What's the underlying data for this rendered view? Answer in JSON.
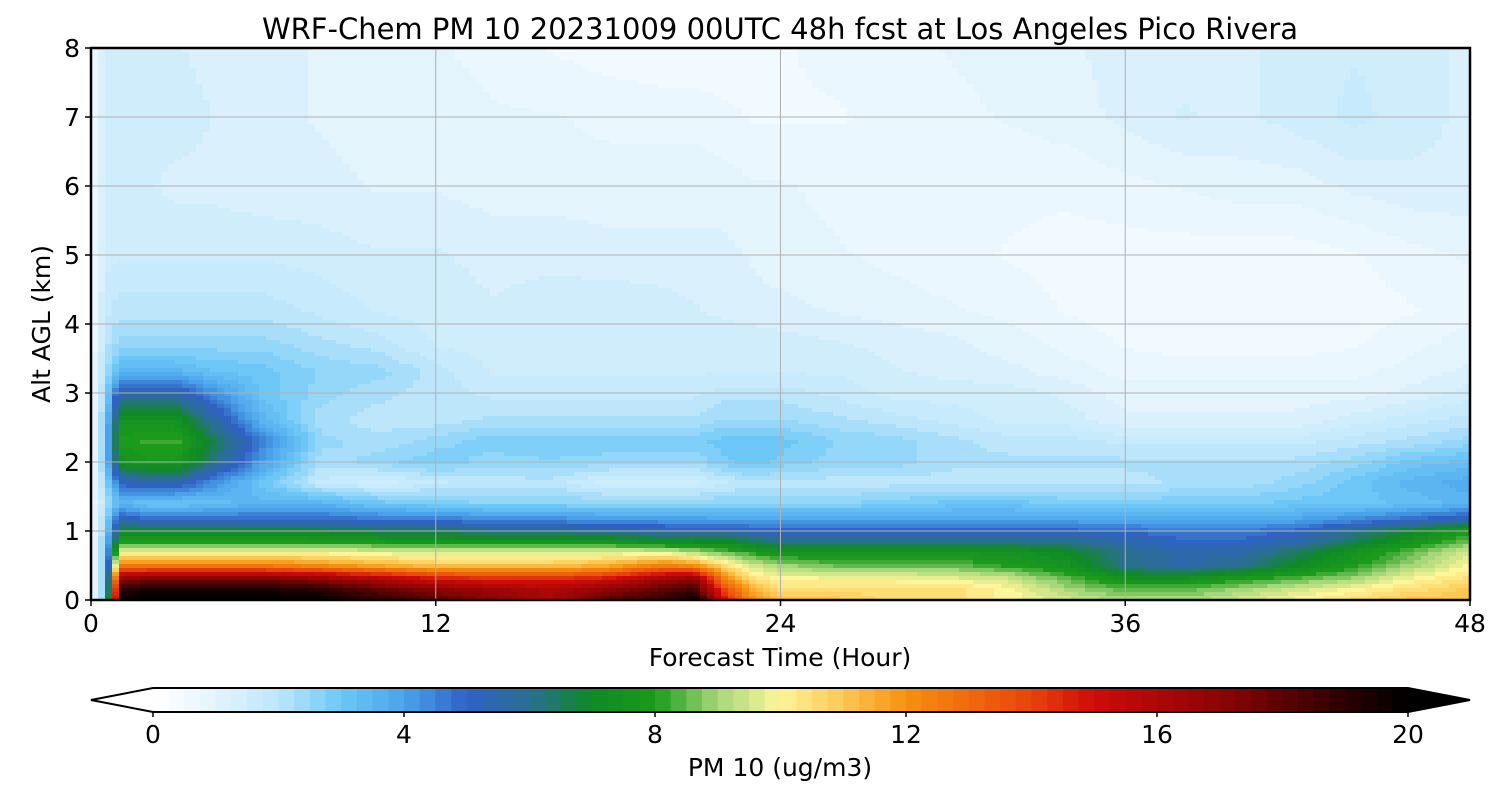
{
  "chart_data": {
    "type": "heatmap",
    "title": "WRF-Chem PM 10  20231009 00UTC 48h fcst at Los Angeles Pico Rivera",
    "xlabel": "Forecast Time (Hour)",
    "ylabel": "Alt AGL (km)",
    "xlim": [
      0,
      48
    ],
    "ylim": [
      0,
      8
    ],
    "xticks": [
      0,
      12,
      24,
      36,
      48
    ],
    "yticks": [
      0,
      1,
      2,
      3,
      4,
      5,
      6,
      7,
      8
    ],
    "grid": true,
    "colorbar": {
      "label": "PM 10  (ug/m3)",
      "range": [
        0,
        20
      ],
      "ticks": [
        0,
        4,
        8,
        12,
        16,
        20
      ],
      "extend": "both",
      "placement": "bottom"
    },
    "x_hours": [
      0,
      0.5,
      1,
      2,
      3,
      4,
      6,
      8,
      10,
      12,
      14,
      16,
      18,
      20,
      21,
      22,
      23,
      24,
      26,
      28,
      30,
      32,
      34,
      36,
      38,
      40,
      42,
      44,
      46,
      48
    ],
    "y_km": [
      0,
      0.15,
      0.3,
      0.5,
      0.7,
      0.85,
      1.0,
      1.15,
      1.4,
      1.7,
      2.0,
      2.3,
      2.6,
      3.0,
      3.3,
      3.7,
      4.2,
      5.0,
      6.0,
      7.0,
      8.0
    ],
    "pm10_ugm3": [
      [
        0.5,
        3,
        20,
        20,
        20,
        20,
        20,
        20,
        19,
        18,
        17,
        16,
        18,
        19,
        20,
        15,
        12,
        11,
        11,
        10.5,
        10.5,
        10,
        9.5,
        9,
        9,
        9.5,
        10,
        10.5,
        11,
        11
      ],
      [
        0.5,
        3,
        19,
        19.5,
        19.5,
        19.5,
        19.5,
        19,
        18,
        17,
        16.5,
        16,
        17,
        18,
        18.5,
        14,
        11.5,
        10.5,
        10.5,
        10.5,
        10.5,
        10,
        9,
        8.5,
        8.5,
        9,
        9.5,
        10,
        10.5,
        11
      ],
      [
        0.5,
        3,
        17,
        17.5,
        17.5,
        17.5,
        17.5,
        17,
        16,
        15,
        14.5,
        14.5,
        15,
        16.5,
        17,
        12.5,
        10.5,
        10,
        10,
        10,
        9.8,
        9.5,
        8.5,
        7.5,
        7.5,
        8,
        8.5,
        9,
        10,
        10.5
      ],
      [
        0.5,
        3,
        12.5,
        12.5,
        12.5,
        12.5,
        12.5,
        12,
        11.5,
        11,
        11,
        11,
        11.5,
        12.5,
        12,
        10.5,
        9.5,
        9,
        8.5,
        8.5,
        8.5,
        8,
        7.5,
        6,
        5.5,
        6,
        7,
        8,
        9,
        10
      ],
      [
        0.5,
        3,
        9.8,
        9.8,
        9.8,
        9.8,
        9.8,
        9.8,
        9.6,
        9.5,
        9.5,
        9.5,
        9.5,
        9.5,
        9,
        8.5,
        8,
        7.5,
        7.5,
        7.5,
        7.5,
        7.5,
        7,
        6,
        5.5,
        5.5,
        6.5,
        7.5,
        8.5,
        9.5
      ],
      [
        0.5,
        3,
        8,
        8,
        8,
        8,
        8,
        8,
        7.8,
        7.5,
        7.5,
        7.5,
        7.5,
        7,
        7,
        7,
        6.5,
        6,
        6,
        6,
        6,
        6,
        6,
        5.5,
        5,
        5,
        5.5,
        6.5,
        7.5,
        8.5
      ],
      [
        0.5,
        2.5,
        7,
        7,
        7,
        7,
        7,
        6.8,
        6.5,
        6.5,
        6,
        6,
        5.8,
        5.5,
        5.5,
        5.5,
        5.2,
        5,
        5,
        5,
        5,
        5,
        5,
        4.8,
        4.5,
        4.5,
        5,
        6,
        7,
        8
      ],
      [
        0.5,
        2.5,
        5.5,
        5,
        5,
        5,
        5,
        5,
        4.8,
        4.8,
        4.5,
        4.5,
        4.2,
        4.2,
        4.2,
        4,
        4,
        4,
        4,
        4,
        4,
        4,
        4,
        4,
        4,
        4,
        4,
        4.5,
        5,
        5.5
      ],
      [
        0.5,
        2,
        3.5,
        3,
        3,
        3.2,
        3.5,
        3.5,
        3,
        2.8,
        2.6,
        2.6,
        2.6,
        2.6,
        2.6,
        2.6,
        2.6,
        2.6,
        2.6,
        2.8,
        3,
        3,
        2.8,
        2.8,
        2.8,
        2.8,
        3,
        3,
        3.2,
        3.5
      ],
      [
        0.5,
        2.5,
        5,
        5.5,
        5.5,
        4.5,
        3,
        1.8,
        1.5,
        1.8,
        2,
        2,
        1.5,
        1.5,
        1.5,
        1.8,
        2,
        2,
        2,
        2,
        2,
        2,
        2,
        2,
        2.2,
        2.2,
        2.5,
        3,
        3.5,
        3.8
      ],
      [
        0.5,
        3,
        7.5,
        7.8,
        7.8,
        6.5,
        4,
        2.2,
        2.5,
        2.8,
        2.5,
        2.6,
        2.5,
        2.4,
        2.4,
        2.8,
        3,
        2.8,
        2.5,
        2.5,
        2.2,
        2.2,
        2.2,
        2.2,
        2.2,
        2.2,
        2.2,
        2.5,
        3,
        3.2
      ],
      [
        0.5,
        3,
        8,
        8.2,
        8.2,
        7,
        4.5,
        2.5,
        2.2,
        2.5,
        2.8,
        2.8,
        2.8,
        2.8,
        2.8,
        3,
        3,
        3,
        2.6,
        2.5,
        2.2,
        2,
        2,
        1.8,
        1.8,
        1.8,
        1.8,
        2,
        2.2,
        2.5
      ],
      [
        0.5,
        2.8,
        7.5,
        7.5,
        7.5,
        6,
        3.5,
        2.2,
        2,
        2,
        2.2,
        2.2,
        2.2,
        2.2,
        2.2,
        2.4,
        2.4,
        2.4,
        2.2,
        2,
        1.8,
        1.5,
        1.5,
        1.2,
        1.2,
        1.2,
        1.2,
        1.5,
        1.8,
        2
      ],
      [
        0.5,
        2.5,
        5.5,
        5.5,
        5.5,
        4.5,
        3,
        2.5,
        2.2,
        2,
        1.8,
        1.8,
        1.8,
        1.8,
        1.8,
        2,
        2,
        2,
        1.8,
        1.5,
        1.5,
        1.5,
        1.3,
        1,
        1,
        1,
        1,
        1,
        1.2,
        1.5
      ],
      [
        0.5,
        2.2,
        3.5,
        3.5,
        3.5,
        3.2,
        3,
        2.6,
        2.5,
        2,
        1.6,
        1.6,
        1.6,
        1.6,
        1.6,
        1.6,
        1.6,
        1.6,
        1.6,
        1.4,
        1.3,
        1.2,
        1,
        0.8,
        0.8,
        0.8,
        0.8,
        0.8,
        1,
        1.2
      ],
      [
        0.5,
        2,
        2.5,
        2.5,
        2.5,
        2.5,
        2.5,
        2.2,
        2,
        1.6,
        1.5,
        1.5,
        1.5,
        1.5,
        1.5,
        1.6,
        1.6,
        1.5,
        1.4,
        1.3,
        1.2,
        1,
        0.8,
        0.6,
        0.5,
        0.5,
        0.5,
        0.6,
        0.8,
        1
      ],
      [
        0.5,
        1.8,
        2,
        2,
        2,
        2,
        2,
        1.8,
        1.6,
        1.5,
        1.4,
        1.5,
        1.6,
        1.5,
        1.4,
        1.3,
        1.2,
        1.2,
        1.1,
        1,
        0.9,
        0.8,
        0.6,
        0.5,
        0.5,
        0.4,
        0.4,
        0.5,
        0.6,
        0.8
      ],
      [
        0.5,
        1.5,
        1.6,
        1.6,
        1.6,
        1.6,
        1.6,
        1.5,
        1.4,
        1.4,
        1.3,
        1.3,
        1.2,
        1.2,
        1.2,
        1.2,
        1.1,
        1,
        0.9,
        0.8,
        0.7,
        0.6,
        0.5,
        0.5,
        0.5,
        0.5,
        0.5,
        0.6,
        0.8,
        0.9
      ],
      [
        0.5,
        1.5,
        1.4,
        1.4,
        1.3,
        1.3,
        1.2,
        1.2,
        1.1,
        1.1,
        1,
        1,
        1,
        1,
        1,
        1,
        0.9,
        0.9,
        0.8,
        0.8,
        0.8,
        0.7,
        0.7,
        0.8,
        0.9,
        1,
        1,
        1.2,
        1.3,
        1.3
      ],
      [
        0.5,
        1.6,
        1.6,
        1.5,
        1.5,
        1.4,
        1.2,
        1.1,
        1,
        1,
        0.9,
        0.9,
        0.8,
        0.8,
        0.8,
        0.7,
        0.6,
        0.6,
        0.6,
        0.7,
        0.8,
        0.9,
        1,
        1.2,
        1.4,
        1.3,
        1.5,
        1.7,
        1.5,
        1.3
      ],
      [
        0.5,
        1.6,
        1.5,
        1.5,
        1.4,
        1.3,
        1.2,
        1.1,
        1,
        0.9,
        0.8,
        0.6,
        0.5,
        0.4,
        0.4,
        0.4,
        0.5,
        0.6,
        0.7,
        0.8,
        0.9,
        1,
        1.1,
        1.2,
        1.3,
        1.3,
        1.5,
        1.6,
        1.5,
        1.3
      ]
    ]
  }
}
